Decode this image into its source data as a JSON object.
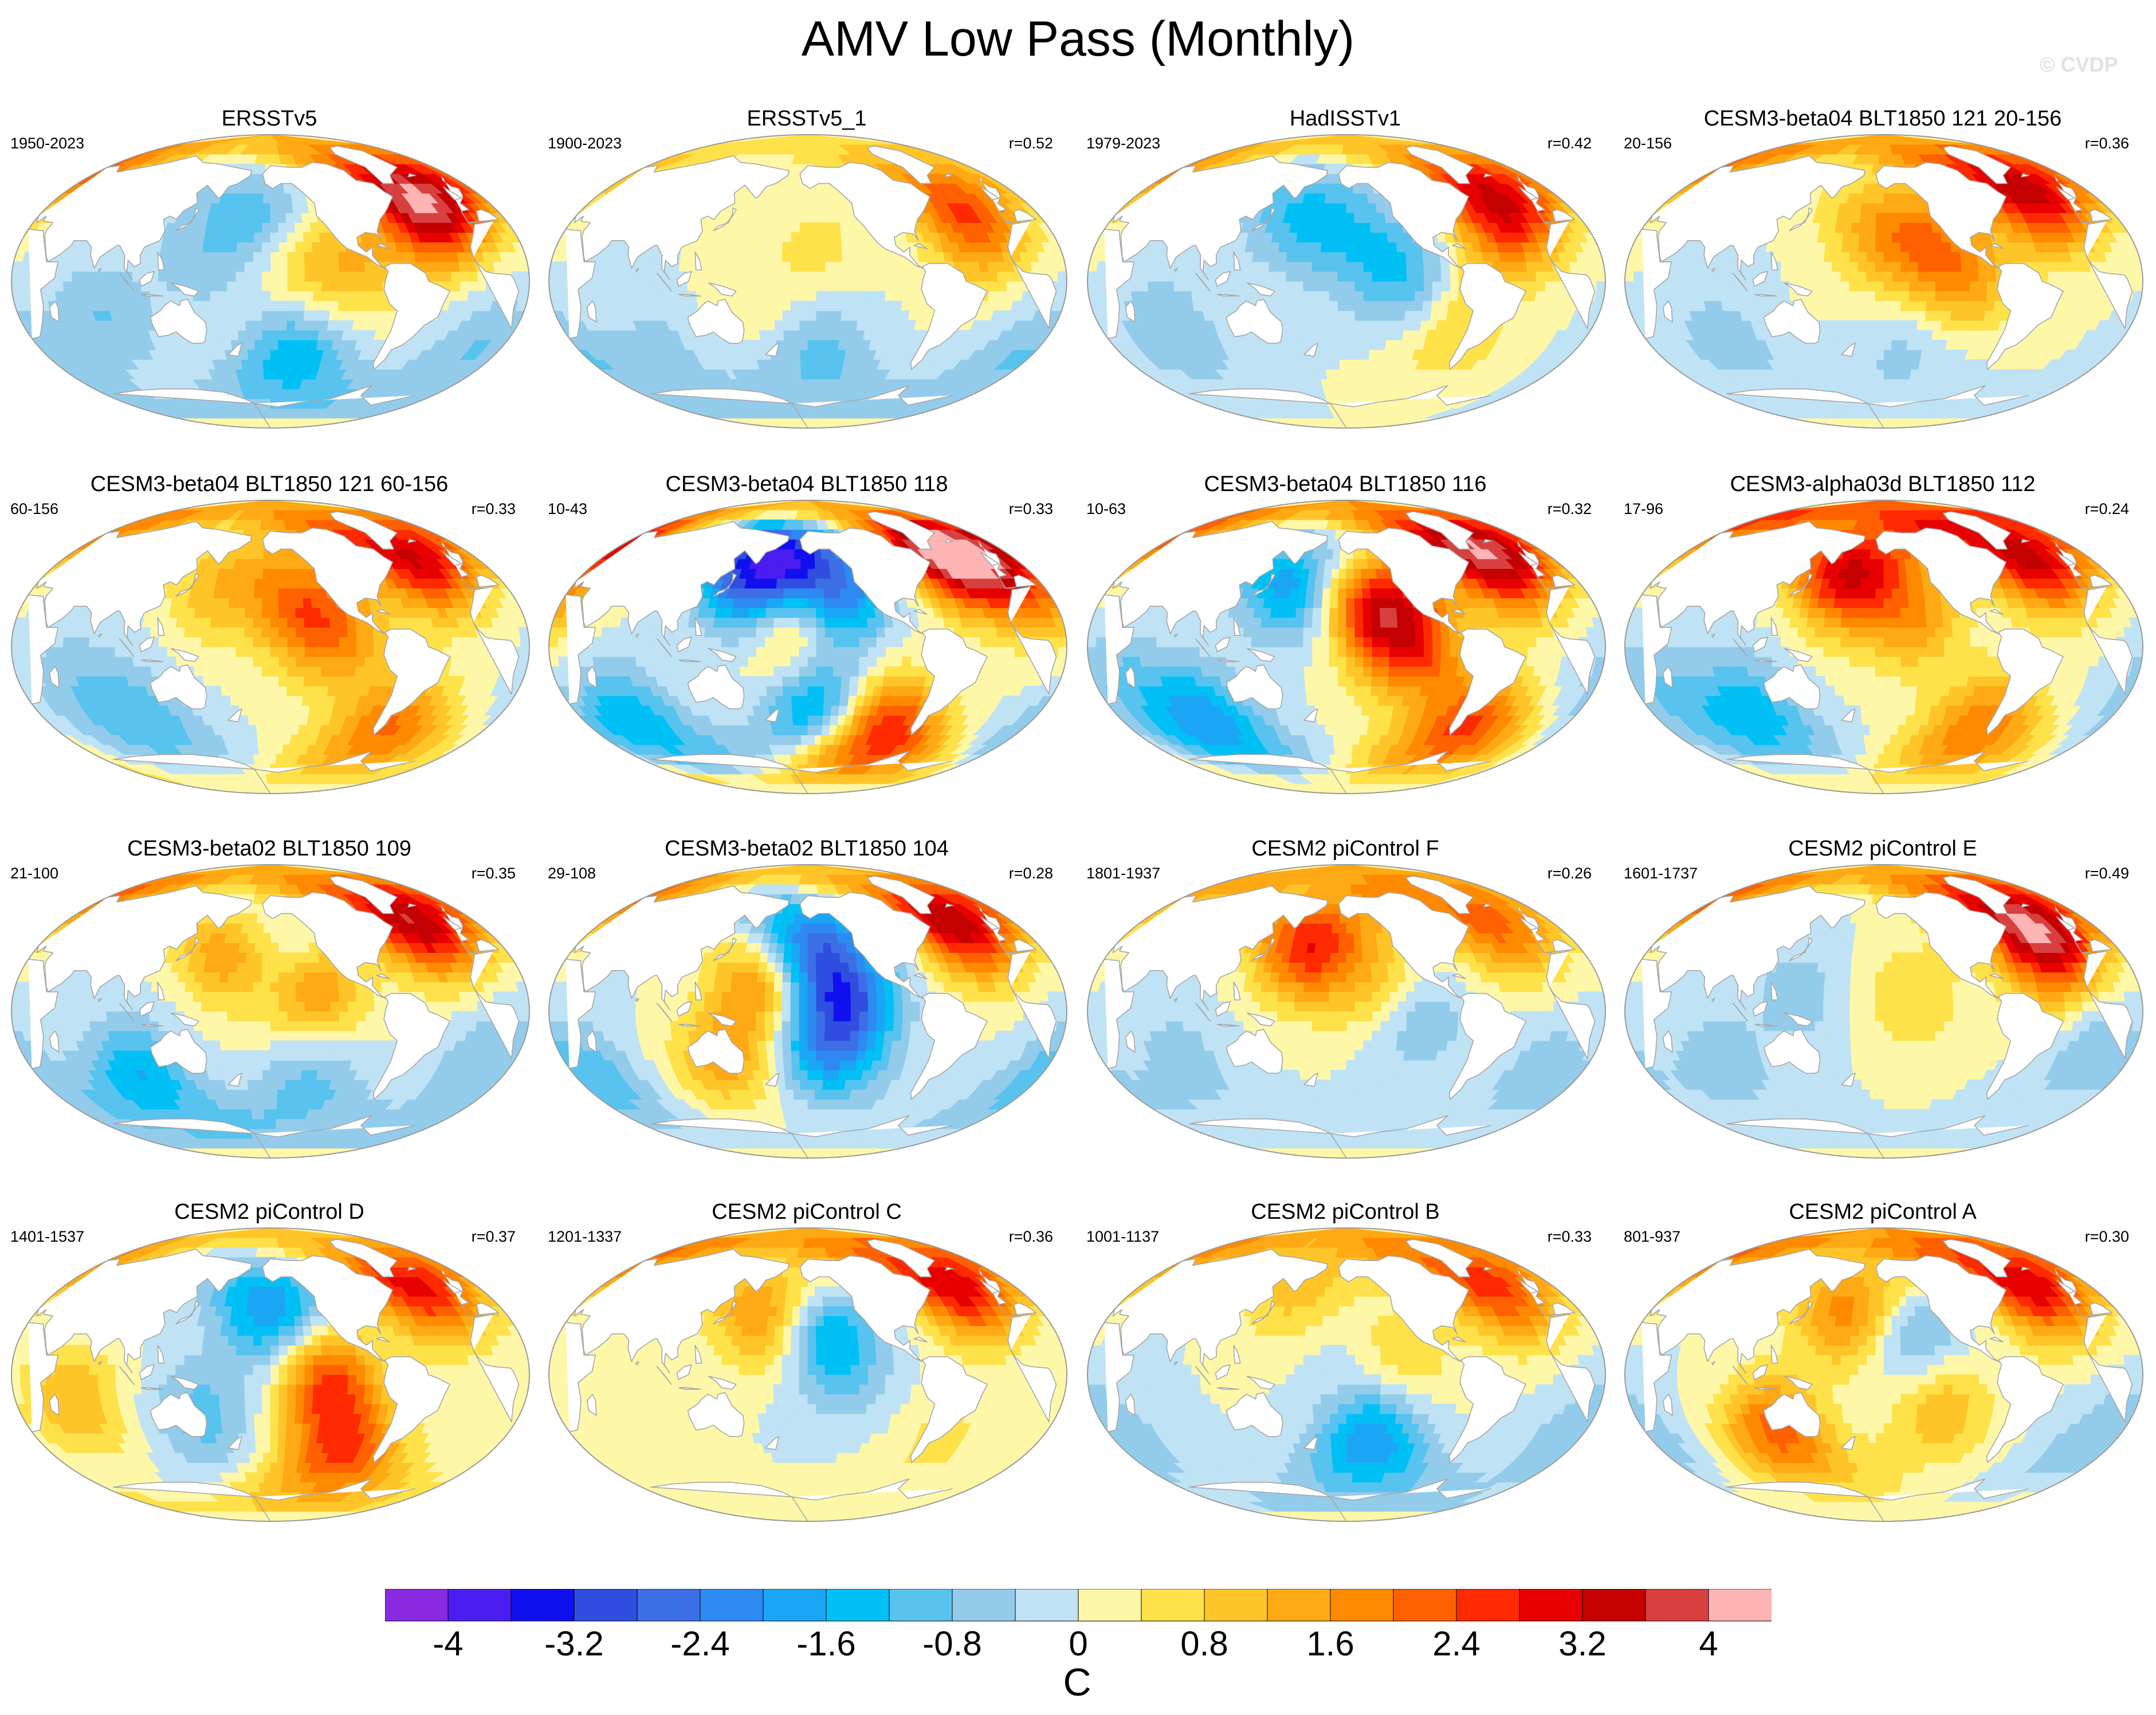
{
  "title": "AMV Low Pass (Monthly)",
  "watermark": "© CVDP",
  "colors": {
    "land": "#ffffff",
    "coast": "#a6a6a6",
    "border": "#9a9a9a",
    "background": "#ffffff"
  },
  "chart_data": {
    "type": "heatmap",
    "projection": "robinson-like global map, centered on the Pacific",
    "variable": "SST regression onto AMV (low pass, monthly)",
    "units": "C",
    "colorbar": {
      "levels": [
        -4.4,
        -4.0,
        -3.6,
        -3.2,
        -2.8,
        -2.4,
        -2.0,
        -1.6,
        -1.2,
        -0.8,
        -0.4,
        0.0,
        0.4,
        0.8,
        1.2,
        1.6,
        2.0,
        2.4,
        2.8,
        3.2,
        3.6,
        4.0,
        4.4
      ],
      "tick_labels": [
        "-4",
        "-3.2",
        "-2.4",
        "-1.6",
        "-0.8",
        "0",
        "0.8",
        "1.6",
        "2.4",
        "3.2",
        "4"
      ],
      "tick_values": [
        -4,
        -3.2,
        -2.4,
        -1.6,
        -0.8,
        0,
        0.8,
        1.6,
        2.4,
        3.2,
        4
      ],
      "colors": [
        "#8a2be2",
        "#4b1cf0",
        "#1010ee",
        "#2f4ee0",
        "#3c6fe6",
        "#2c8af2",
        "#1aa6f5",
        "#00c0f5",
        "#57c3ee",
        "#93cceb",
        "#bfe3f5",
        "#fff7a8",
        "#ffe14a",
        "#ffc528",
        "#ffa914",
        "#ff8a00",
        "#ff6100",
        "#ff2a00",
        "#e80000",
        "#c40000",
        "#d84040",
        "#ffb4b4"
      ]
    },
    "panels": [
      {
        "title": "ERSSTv5",
        "years": "1950-2023",
        "r": "",
        "pattern": [
          {
            "lon": -30,
            "lat": 55,
            "v": 3.0
          },
          {
            "lon": -45,
            "lat": 35,
            "v": 1.6
          },
          {
            "lon": -100,
            "lat": 10,
            "v": 1.0
          },
          {
            "lon": -140,
            "lat": 5,
            "v": 0.8
          },
          {
            "lon": -170,
            "lat": 40,
            "v": -1.0
          },
          {
            "lon": -140,
            "lat": -45,
            "v": -1.6
          },
          {
            "lon": 150,
            "lat": 15,
            "v": -0.6
          },
          {
            "lon": 80,
            "lat": -20,
            "v": -0.8
          },
          {
            "lon": 0,
            "lat": -40,
            "v": -0.8
          }
        ]
      },
      {
        "title": "ERSSTv5_1",
        "years": "1900-2023",
        "r": "r=0.52",
        "pattern": [
          {
            "lon": -35,
            "lat": 50,
            "v": 1.8
          },
          {
            "lon": -40,
            "lat": 25,
            "v": 1.0
          },
          {
            "lon": -150,
            "lat": 20,
            "v": 0.5
          },
          {
            "lon": 160,
            "lat": -10,
            "v": 0.4
          },
          {
            "lon": -150,
            "lat": -45,
            "v": -1.0
          },
          {
            "lon": 10,
            "lat": -45,
            "v": -0.8
          },
          {
            "lon": 90,
            "lat": -40,
            "v": -0.5
          }
        ]
      },
      {
        "title": "HadISSTv1",
        "years": "1979-2023",
        "r": "r=0.42",
        "pattern": [
          {
            "lon": -30,
            "lat": 55,
            "v": 2.6
          },
          {
            "lon": -50,
            "lat": 30,
            "v": 1.4
          },
          {
            "lon": -120,
            "lat": 5,
            "v": -1.2
          },
          {
            "lon": -160,
            "lat": 25,
            "v": -0.8
          },
          {
            "lon": 160,
            "lat": 40,
            "v": -1.0
          },
          {
            "lon": -80,
            "lat": -30,
            "v": 0.8
          },
          {
            "lon": 70,
            "lat": -30,
            "v": -0.8
          }
        ]
      },
      {
        "title": "CESM3-beta04 BLT1850 121 20-156",
        "years": "20-156",
        "r": "r=0.36",
        "pattern": [
          {
            "lon": -35,
            "lat": 55,
            "v": 3.4
          },
          {
            "lon": -130,
            "lat": 20,
            "v": 1.6
          },
          {
            "lon": -100,
            "lat": 0,
            "v": 1.2
          },
          {
            "lon": -170,
            "lat": 30,
            "v": 1.0
          },
          {
            "lon": -140,
            "lat": -40,
            "v": -0.6
          },
          {
            "lon": 80,
            "lat": -35,
            "v": -0.6
          }
        ]
      },
      {
        "title": "CESM3-beta04 BLT1850 121 60-156",
        "years": "60-156",
        "r": "r=0.33",
        "pattern": [
          {
            "lon": -35,
            "lat": 55,
            "v": 3.2
          },
          {
            "lon": -140,
            "lat": 25,
            "v": 1.8
          },
          {
            "lon": -110,
            "lat": 5,
            "v": 1.4
          },
          {
            "lon": 160,
            "lat": 35,
            "v": 1.0
          },
          {
            "lon": -60,
            "lat": -50,
            "v": 2.0
          },
          {
            "lon": 100,
            "lat": -45,
            "v": -1.0
          },
          {
            "lon": 60,
            "lat": -20,
            "v": -0.6
          }
        ]
      },
      {
        "title": "CESM3-beta04 BLT1850 118",
        "years": "10-43",
        "r": "r=0.33",
        "pattern": [
          {
            "lon": -35,
            "lat": 58,
            "v": 4.4
          },
          {
            "lon": 160,
            "lat": 45,
            "v": -3.6
          },
          {
            "lon": -140,
            "lat": 35,
            "v": -2.8
          },
          {
            "lon": -170,
            "lat": 15,
            "v": 1.6
          },
          {
            "lon": -100,
            "lat": -55,
            "v": 3.4
          },
          {
            "lon": -150,
            "lat": -40,
            "v": -2.0
          },
          {
            "lon": 60,
            "lat": -45,
            "v": -1.6
          },
          {
            "lon": 10,
            "lat": 35,
            "v": 1.6
          }
        ]
      },
      {
        "title": "CESM3-beta04 BLT1850 116",
        "years": "10-63",
        "r": "r=0.32",
        "pattern": [
          {
            "lon": -35,
            "lat": 57,
            "v": 4.0
          },
          {
            "lon": -140,
            "lat": 25,
            "v": 2.8
          },
          {
            "lon": -110,
            "lat": 0,
            "v": 2.2
          },
          {
            "lon": 160,
            "lat": 40,
            "v": -2.0
          },
          {
            "lon": -60,
            "lat": -50,
            "v": 2.4
          },
          {
            "lon": 90,
            "lat": -45,
            "v": -1.8
          },
          {
            "lon": 40,
            "lat": -20,
            "v": -0.8
          }
        ]
      },
      {
        "title": "CESM3-alpha03d BLT1850 112",
        "years": "17-96",
        "r": "r=0.24",
        "pattern": [
          {
            "lon": -35,
            "lat": 56,
            "v": 3.4
          },
          {
            "lon": 170,
            "lat": 45,
            "v": 3.0
          },
          {
            "lon": -140,
            "lat": 20,
            "v": 1.6
          },
          {
            "lon": -80,
            "lat": -50,
            "v": 2.0
          },
          {
            "lon": 100,
            "lat": -40,
            "v": -1.4
          },
          {
            "lon": 40,
            "lat": -25,
            "v": -0.8
          }
        ]
      },
      {
        "title": "CESM3-beta02 BLT1850 109",
        "years": "21-100",
        "r": "r=0.35",
        "pattern": [
          {
            "lon": -35,
            "lat": 56,
            "v": 3.6
          },
          {
            "lon": 175,
            "lat": 40,
            "v": 2.4
          },
          {
            "lon": -130,
            "lat": 15,
            "v": 1.8
          },
          {
            "lon": -160,
            "lat": 45,
            "v": -2.0
          },
          {
            "lon": 100,
            "lat": -40,
            "v": -1.6
          },
          {
            "lon": -130,
            "lat": -45,
            "v": -1.0
          },
          {
            "lon": 0,
            "lat": -30,
            "v": -0.8
          }
        ]
      },
      {
        "title": "CESM3-beta02 BLT1850 104",
        "years": "29-108",
        "r": "r=0.28",
        "pattern": [
          {
            "lon": -35,
            "lat": 56,
            "v": 3.6
          },
          {
            "lon": -130,
            "lat": 5,
            "v": -2.4
          },
          {
            "lon": -160,
            "lat": 40,
            "v": -2.8
          },
          {
            "lon": 170,
            "lat": 20,
            "v": 2.0
          },
          {
            "lon": -150,
            "lat": -25,
            "v": -1.6
          },
          {
            "lon": 140,
            "lat": -30,
            "v": 1.4
          },
          {
            "lon": 30,
            "lat": -40,
            "v": -1.2
          }
        ]
      },
      {
        "title": "CESM2 piControl F",
        "years": "1801-1937",
        "r": "r=0.26",
        "pattern": [
          {
            "lon": -35,
            "lat": 55,
            "v": 2.2
          },
          {
            "lon": 170,
            "lat": 40,
            "v": 2.6
          },
          {
            "lon": -140,
            "lat": 20,
            "v": 1.0
          },
          {
            "lon": -110,
            "lat": -5,
            "v": -0.8
          },
          {
            "lon": 80,
            "lat": -30,
            "v": -0.6
          },
          {
            "lon": -10,
            "lat": -35,
            "v": -0.6
          }
        ]
      },
      {
        "title": "CESM2 piControl E",
        "years": "1601-1737",
        "r": "r=0.49",
        "pattern": [
          {
            "lon": -35,
            "lat": 55,
            "v": 3.6
          },
          {
            "lon": -40,
            "lat": 25,
            "v": 1.2
          },
          {
            "lon": -140,
            "lat": 10,
            "v": 0.8
          },
          {
            "lon": 140,
            "lat": 10,
            "v": -0.6
          },
          {
            "lon": 80,
            "lat": -30,
            "v": -0.6
          },
          {
            "lon": -10,
            "lat": -20,
            "v": -0.8
          }
        ]
      },
      {
        "title": "CESM2 piControl D",
        "years": "1401-1537",
        "r": "r=0.37",
        "pattern": [
          {
            "lon": -35,
            "lat": 55,
            "v": 3.0
          },
          {
            "lon": -120,
            "lat": -5,
            "v": 2.4
          },
          {
            "lon": -160,
            "lat": 40,
            "v": -2.0
          },
          {
            "lon": 150,
            "lat": -25,
            "v": -1.0
          },
          {
            "lon": -100,
            "lat": -50,
            "v": 2.2
          },
          {
            "lon": 60,
            "lat": -15,
            "v": 1.2
          }
        ]
      },
      {
        "title": "CESM2 piControl C",
        "years": "1201-1337",
        "r": "r=0.36",
        "pattern": [
          {
            "lon": -35,
            "lat": 56,
            "v": 3.2
          },
          {
            "lon": 170,
            "lat": 40,
            "v": 2.0
          },
          {
            "lon": -150,
            "lat": 30,
            "v": -1.6
          },
          {
            "lon": -130,
            "lat": 0,
            "v": -0.6
          },
          {
            "lon": 80,
            "lat": -30,
            "v": 0.4
          },
          {
            "lon": -60,
            "lat": -40,
            "v": 0.5
          }
        ]
      },
      {
        "title": "CESM2 piControl B",
        "years": "1001-1137",
        "r": "r=0.33",
        "pattern": [
          {
            "lon": -35,
            "lat": 55,
            "v": 2.6
          },
          {
            "lon": 165,
            "lat": 45,
            "v": 2.8
          },
          {
            "lon": 170,
            "lat": 40,
            "v": -2.0
          },
          {
            "lon": -140,
            "lat": -40,
            "v": -2.0
          },
          {
            "lon": -120,
            "lat": 10,
            "v": 0.8
          },
          {
            "lon": 20,
            "lat": -35,
            "v": -0.8
          }
        ]
      },
      {
        "title": "CESM2 piControl A",
        "years": "801-937",
        "r": "r=0.30",
        "pattern": [
          {
            "lon": -35,
            "lat": 56,
            "v": 3.2
          },
          {
            "lon": 175,
            "lat": 40,
            "v": 2.0
          },
          {
            "lon": -140,
            "lat": 25,
            "v": -1.2
          },
          {
            "lon": 120,
            "lat": -35,
            "v": 2.2
          },
          {
            "lon": -120,
            "lat": -20,
            "v": 1.2
          },
          {
            "lon": 10,
            "lat": -40,
            "v": -0.8
          }
        ]
      }
    ]
  }
}
